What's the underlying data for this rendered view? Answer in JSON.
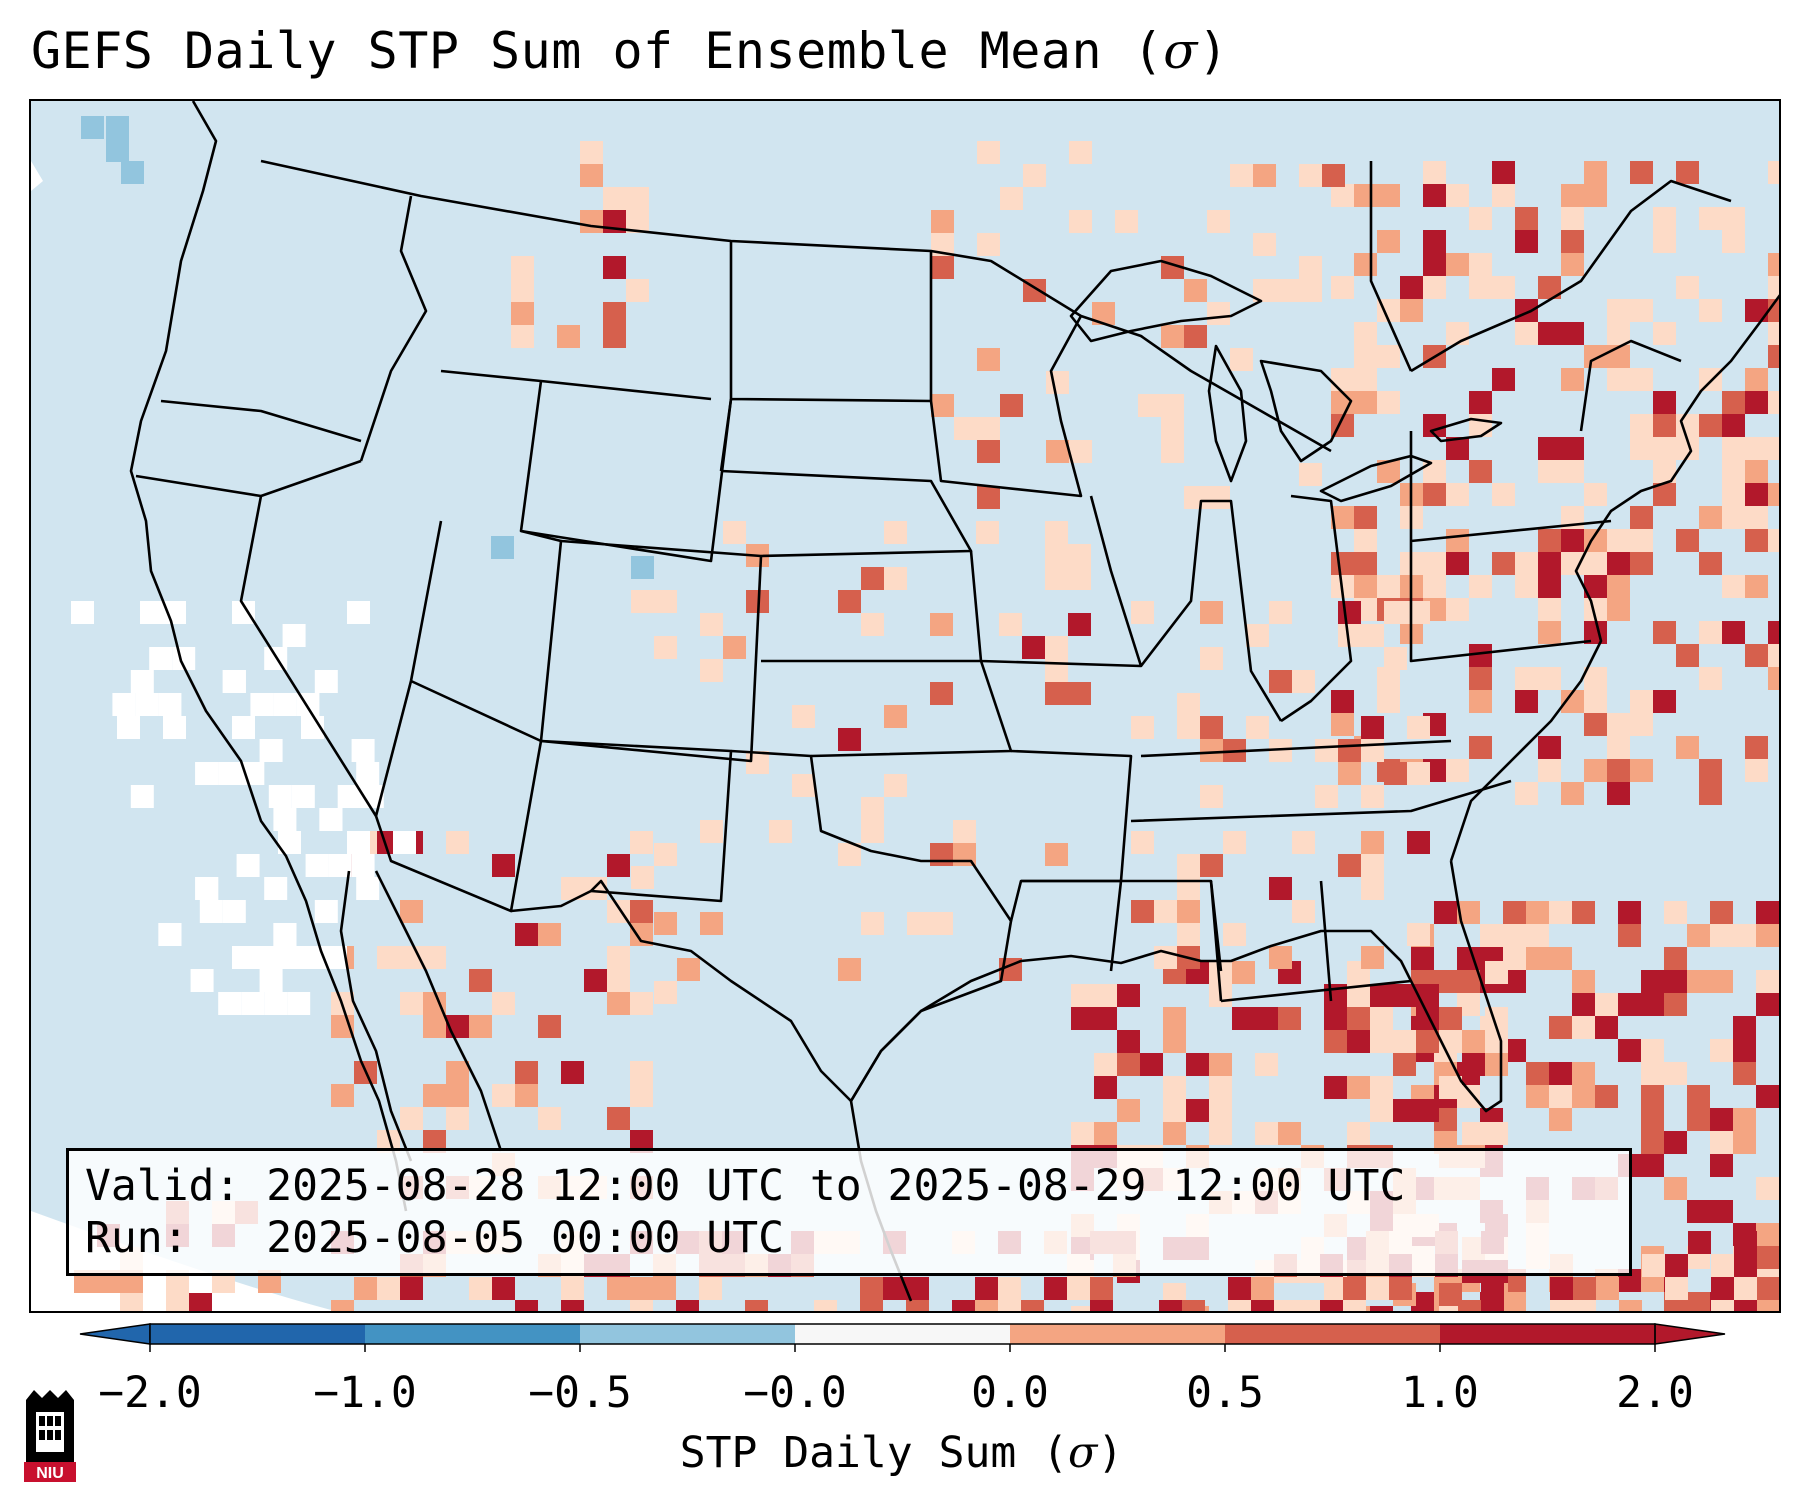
{
  "title": {
    "main": "GEFS Daily STP Sum of Ensemble Mean (",
    "sigma": "σ",
    "close": ")"
  },
  "info": {
    "valid_label": "Valid:",
    "valid_value": "2025-08-28 12:00 UTC to 2025-08-29 12:00 UTC",
    "run_label": "Run:",
    "run_value": "2025-08-05 00:00 UTC"
  },
  "colorbar": {
    "label_text": "STP Daily Sum (",
    "label_sigma": "σ",
    "label_close": ")",
    "ticks": [
      "−2.0",
      "−1.0",
      "−0.5",
      "−0.0",
      "0.0",
      "0.5",
      "1.0",
      "2.0"
    ],
    "colors": [
      "#2166ac",
      "#4393c3",
      "#92c5de",
      "#d1e5f0",
      "#fddbc7",
      "#f4a582",
      "#d6604d",
      "#b2182b"
    ]
  },
  "logo": {
    "text": "NIU",
    "color": "#c8102e"
  },
  "map": {
    "background_color": "#d1e5f0",
    "land_color": "#d1e5f0",
    "border_color": "#000000"
  }
}
